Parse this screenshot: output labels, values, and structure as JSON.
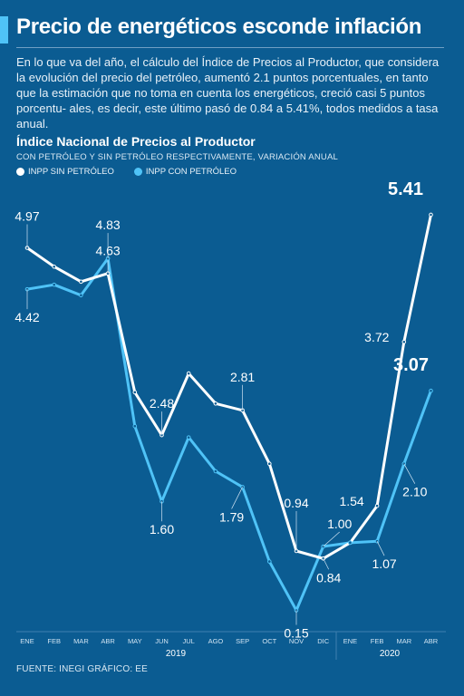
{
  "header": {
    "title": "Precio de energéticos esconde inflación",
    "description": "En lo que va del año, el cálculo del Índice de Precios al Productor, que considera la evolución del precio del petróleo, aumentó 2.1 puntos porcentuales, en tanto que la estimación que no toma en cuenta los energéticos, creció casi 5 puntos porcentu- ales, es decir, este último pasó de 0.84 a 5.41%, todos medidos a tasa anual."
  },
  "colors": {
    "background": "#0b5c92",
    "sin_petroleo": "#ffffff",
    "con_petroleo": "#4fc3f7"
  },
  "chart_data": {
    "type": "line",
    "title": "Índice Nacional de Precios al Productor",
    "subtitle": "CON PETRÓLEO Y SIN PETRÓLEO RESPECTIVAMENTE, VARIACIÓN ANUAL",
    "categories": [
      "ENE",
      "FEB",
      "MAR",
      "ABR",
      "MAY",
      "JUN",
      "JUL",
      "AGO",
      "SEP",
      "OCT",
      "NOV",
      "DIC",
      "ENE",
      "FEB",
      "MAR",
      "ABR"
    ],
    "year_labels": [
      "2019",
      "2020"
    ],
    "ylim": [
      0,
      5.6
    ],
    "series": [
      {
        "name": "INPP SIN PETRÓLEO",
        "color": "#ffffff",
        "values": [
          4.97,
          4.72,
          4.52,
          4.63,
          3.05,
          2.48,
          3.3,
          2.9,
          2.81,
          2.1,
          0.94,
          0.84,
          1.05,
          1.54,
          3.72,
          5.41
        ],
        "labels": {
          "0": "4.97",
          "3": "4.63",
          "5": "2.48",
          "8": "2.81",
          "10": "0.94",
          "11": "0.84",
          "13": "1.54",
          "14": "3.72",
          "15": "5.41"
        }
      },
      {
        "name": "INPP CON PETRÓLEO",
        "color": "#4fc3f7",
        "values": [
          4.42,
          4.48,
          4.34,
          4.83,
          2.6,
          1.6,
          2.45,
          2.0,
          1.79,
          0.8,
          0.15,
          1.0,
          1.05,
          1.07,
          2.1,
          3.07
        ],
        "labels": {
          "0": "4.42",
          "3": "4.83",
          "5": "1.60",
          "8": "1.79",
          "10": "0.15",
          "11": "1.00",
          "13": "1.07",
          "14": "2.10",
          "15": "3.07"
        }
      }
    ]
  },
  "source": "FUENTE: INEGI   GRÁFICO: EE"
}
